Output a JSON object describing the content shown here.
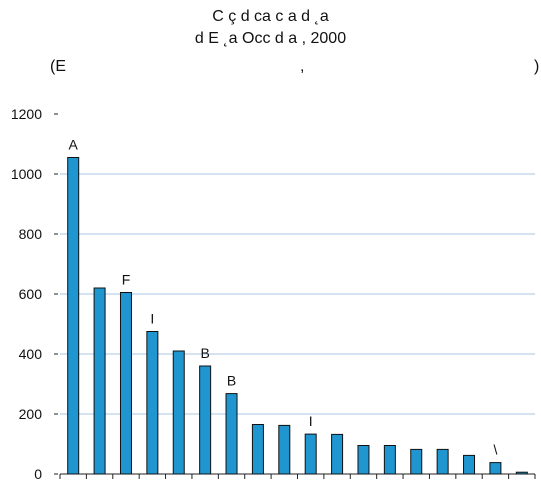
{
  "chart_data": {
    "type": "bar",
    "title_line1": "C ç d ca c a d ˛a",
    "title_line2": "d E ˛a Occ d a , 2000",
    "subtitle_left": "(E",
    "subtitle_mid": ",",
    "subtitle_right": ")",
    "ylim": [
      0,
      1200
    ],
    "yticks": [
      0,
      200,
      400,
      600,
      800,
      1000,
      1200
    ],
    "grid": true,
    "bar_color": "#1f96cf",
    "values": [
      1055,
      620,
      605,
      475,
      410,
      360,
      268,
      165,
      162,
      133,
      132,
      95,
      95,
      82,
      82,
      62,
      38,
      6
    ],
    "bar_labels": [
      "A",
      "",
      "F",
      "I",
      "",
      "B",
      "B",
      "",
      "",
      "I",
      "",
      "",
      "",
      "",
      "",
      "",
      "\\",
      ""
    ]
  }
}
